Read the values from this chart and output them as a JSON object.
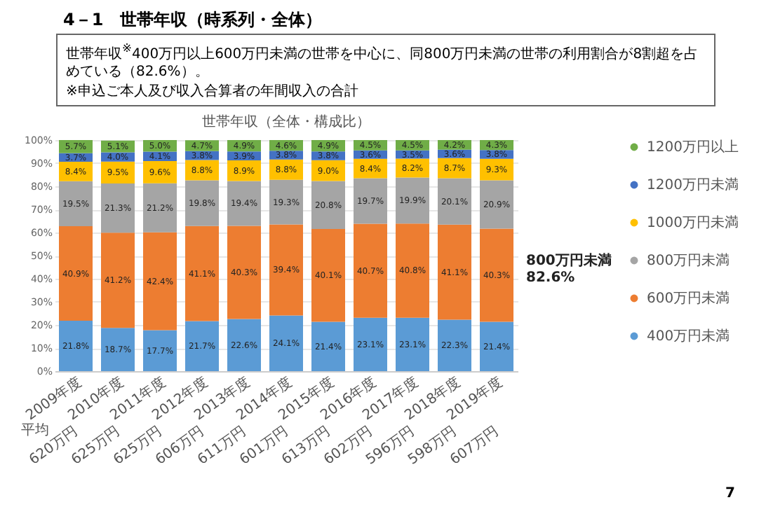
{
  "chart_data": {
    "type": "bar",
    "title": "4－1　世帯年収（時系列・全体）",
    "subtitle": "世帯年収$^{※}$400万円以上600万円未満の世帯を中心に、同800万円未満の世帯の利用割合が8割超を占めている（82.6%）。",
    "annotations": [
      "※申込ご本人及び収入合算者の年間収入の合計",
      "世帯年収（全体・構成比）",
      "平均",
      "800万円未満\n82.6%",
      "7",
      "620万円",
      "625万円",
      "625万円",
      "606万円",
      "611万円",
      "601万円",
      "613万円",
      "602万円",
      "596万円",
      "598万円",
      "607万円"
    ],
    "categories": [
      "2009年度",
      "2010年度",
      "2011年度",
      "2012年度",
      "2013年度",
      "2014年度",
      "2015年度",
      "2016年度",
      "2017年度",
      "2018年度",
      "2019年度"
    ],
    "stacked": true,
    "grid": "y",
    "legend": "right",
    "ylim": [
      0,
      100
    ],
    "yticks": [
      {
        "value": 0,
        "label": "0%"
      },
      {
        "value": 10,
        "label": "10%"
      },
      {
        "value": 20,
        "label": "20%"
      },
      {
        "value": 30,
        "label": "30%"
      },
      {
        "value": 40,
        "label": "40%"
      },
      {
        "value": 50,
        "label": "50%"
      },
      {
        "value": 60,
        "label": "60%"
      },
      {
        "value": 70,
        "label": "70%"
      },
      {
        "value": 80,
        "label": "80%"
      },
      {
        "value": 90,
        "label": "90%"
      },
      {
        "value": 100,
        "label": "100%"
      }
    ],
    "series": [
      {
        "name": "400万円未満",
        "color": "#5b9bd5",
        "values": [
          21.8,
          18.7,
          17.7,
          21.7,
          22.6,
          24.1,
          21.4,
          23.1,
          23.1,
          22.3,
          21.4
        ],
        "value_labels": [
          "21.8%",
          "18.7%",
          "17.7%",
          "21.7%",
          "22.6%",
          "24.1%",
          "21.4%",
          "23.1%",
          "23.1%",
          "22.3%",
          "21.4%"
        ]
      },
      {
        "name": "600万円未満",
        "color": "#ed7d31",
        "values": [
          40.9,
          41.2,
          42.4,
          41.1,
          40.3,
          39.4,
          40.1,
          40.7,
          40.8,
          41.1,
          40.3
        ],
        "value_labels": [
          "40.9%",
          "41.2%",
          "42.4%",
          "41.1%",
          "40.3%",
          "39.4%",
          "40.1%",
          "40.7%",
          "40.8%",
          "41.1%",
          "40.3%"
        ]
      },
      {
        "name": "800万円未満",
        "color": "#a5a5a5",
        "values": [
          19.5,
          21.3,
          21.2,
          19.8,
          19.4,
          19.3,
          20.8,
          19.7,
          19.9,
          20.1,
          20.9
        ],
        "value_labels": [
          "19.5%",
          "21.3%",
          "21.2%",
          "19.8%",
          "19.4%",
          "19.3%",
          "20.8%",
          "19.7%",
          "19.9%",
          "20.1%",
          "20.9%"
        ]
      },
      {
        "name": "1000万円未満",
        "color": "#ffc000",
        "values": [
          8.4,
          9.5,
          9.6,
          8.8,
          8.9,
          8.8,
          9.0,
          8.4,
          8.2,
          8.7,
          9.3
        ],
        "value_labels": [
          "8.4%",
          "9.5%",
          "9.6%",
          "8.8%",
          "8.9%",
          "8.8%",
          "9.0%",
          "8.4%",
          "8.2%",
          "8.7%",
          "9.3%"
        ]
      },
      {
        "name": "1200万円未満",
        "color": "#4472c4",
        "values": [
          3.7,
          4.0,
          4.1,
          3.8,
          3.9,
          3.8,
          3.8,
          3.6,
          3.5,
          3.6,
          3.8
        ],
        "value_labels": [
          "3.7%",
          "4.0%",
          "4.1%",
          "3.8%",
          "3.9%",
          "3.8%",
          "3.8%",
          "3.6%",
          "3.5%",
          "3.6%",
          "3.8%"
        ]
      },
      {
        "name": "1200万円以上",
        "color": "#70ad47",
        "values": [
          5.7,
          5.1,
          5.0,
          4.7,
          4.9,
          4.6,
          4.9,
          4.5,
          4.5,
          4.2,
          4.3
        ],
        "value_labels": [
          "5.7%",
          "5.1%",
          "5.0%",
          "4.7%",
          "4.9%",
          "4.6%",
          "4.9%",
          "4.5%",
          "4.5%",
          "4.2%",
          "4.3%"
        ]
      }
    ]
  }
}
